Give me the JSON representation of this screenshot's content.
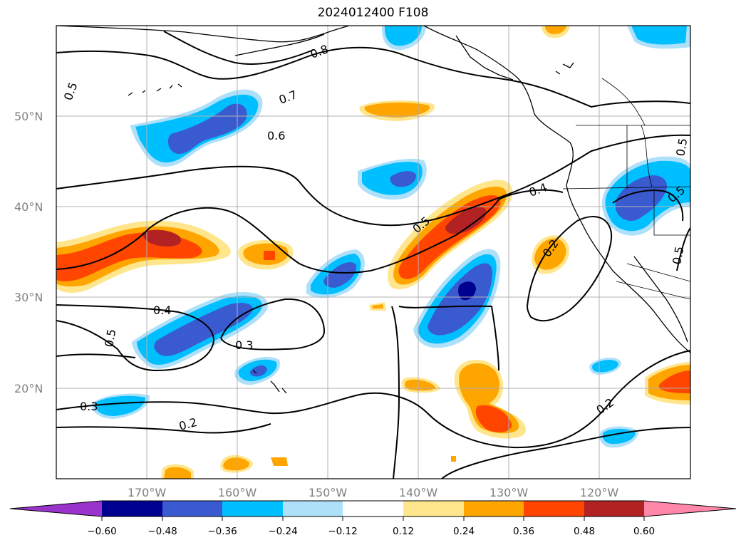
{
  "title": "2024012400 F108",
  "map": {
    "lat_labels": [
      "50°N",
      "40°N",
      "30°N",
      "20°N"
    ],
    "lon_labels": [
      "170°W",
      "160°W",
      "150°W",
      "140°W",
      "130°W",
      "120°W"
    ],
    "contour_labels": [
      "0.8",
      "0.7",
      "0.6",
      "0.5",
      "0.5",
      "0.4",
      "0.5",
      "0.4",
      "0.3",
      "0.5",
      "0.3",
      "0.2",
      "0.2",
      "0.2",
      "0.5",
      "0.5"
    ]
  },
  "colorbar": {
    "ticks": [
      "−0.60",
      "−0.48",
      "−0.36",
      "−0.24",
      "−0.12",
      "0.12",
      "0.24",
      "0.36",
      "0.48",
      "0.60"
    ],
    "colors": [
      "#9933cc",
      "#000090",
      "#3a5bd0",
      "#00bfff",
      "#aee0fa",
      "#ffffff",
      "#ffe68c",
      "#ffa500",
      "#ff4500",
      "#b22222",
      "#ff88aa"
    ]
  }
}
